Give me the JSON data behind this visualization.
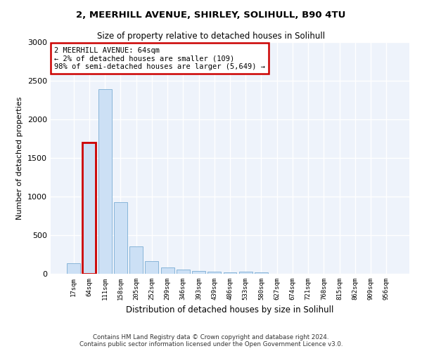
{
  "title1": "2, MEERHILL AVENUE, SHIRLEY, SOLIHULL, B90 4TU",
  "title2": "Size of property relative to detached houses in Solihull",
  "xlabel": "Distribution of detached houses by size in Solihull",
  "ylabel": "Number of detached properties",
  "bar_color": "#cce0f5",
  "bar_edge_color": "#7aadd4",
  "highlight_color": "#cc0000",
  "highlight_bar_index": 1,
  "annotation_line1": "2 MEERHILL AVENUE: 64sqm",
  "annotation_line2": "← 2% of detached houses are smaller (109)",
  "annotation_line3": "98% of semi-detached houses are larger (5,649) →",
  "categories": [
    "17sqm",
    "64sqm",
    "111sqm",
    "158sqm",
    "205sqm",
    "252sqm",
    "299sqm",
    "346sqm",
    "393sqm",
    "439sqm",
    "486sqm",
    "533sqm",
    "580sqm",
    "627sqm",
    "674sqm",
    "721sqm",
    "768sqm",
    "815sqm",
    "862sqm",
    "909sqm",
    "956sqm"
  ],
  "values": [
    140,
    1700,
    2390,
    930,
    355,
    165,
    85,
    55,
    38,
    25,
    20,
    30,
    20,
    0,
    0,
    0,
    0,
    0,
    0,
    0,
    0
  ],
  "ylim": [
    0,
    3000
  ],
  "yticks": [
    0,
    500,
    1000,
    1500,
    2000,
    2500,
    3000
  ],
  "footer": "Contains HM Land Registry data © Crown copyright and database right 2024.\nContains public sector information licensed under the Open Government Licence v3.0.",
  "background_color": "#eef3fb",
  "grid_color": "#ffffff",
  "fig_bg_color": "#ffffff"
}
